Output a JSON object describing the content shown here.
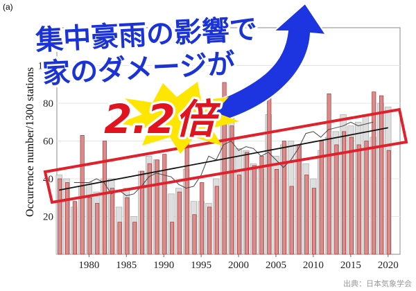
{
  "panel_label": "(a)",
  "overlay": {
    "headline_1": "集中豪雨の影響で",
    "headline_2": "家のダメージが",
    "ratio": "2.2倍"
  },
  "source": "出典：日本気象学会",
  "chart_data": {
    "type": "bar",
    "ylabel": "Occurrence number/1300 stations",
    "x": [
      1976,
      1977,
      1978,
      1979,
      1980,
      1981,
      1982,
      1983,
      1984,
      1985,
      1986,
      1987,
      1988,
      1989,
      1990,
      1991,
      1992,
      1993,
      1994,
      1995,
      1996,
      1997,
      1998,
      1999,
      2000,
      2001,
      2002,
      2003,
      2004,
      2005,
      2006,
      2007,
      2008,
      2009,
      2010,
      2011,
      2012,
      2013,
      2014,
      2015,
      2016,
      2017,
      2018,
      2019,
      2020
    ],
    "series": [
      {
        "color": "#dedede",
        "values": [
          42,
          40,
          25,
          36,
          38,
          33,
          40,
          40,
          25,
          35,
          20,
          44,
          52,
          50,
          44,
          32,
          35,
          45,
          28,
          28,
          27,
          40,
          70,
          78,
          56,
          55,
          48,
          45,
          74,
          52,
          58,
          60,
          58,
          48,
          40,
          55,
          62,
          65,
          74,
          68,
          70,
          74,
          62,
          80,
          78
        ]
      },
      {
        "color": "#d98c8c",
        "values": [
          40,
          38,
          28,
          63,
          30,
          27,
          60,
          35,
          17,
          30,
          17,
          44,
          48,
          50,
          53,
          17,
          33,
          62,
          21,
          38,
          25,
          36,
          91,
          68,
          42,
          54,
          47,
          52,
          87,
          45,
          60,
          36,
          58,
          42,
          35,
          60,
          85,
          58,
          65,
          62,
          58,
          60,
          86,
          84,
          55
        ]
      }
    ],
    "running_mean": {
      "color": "#444444",
      "values": [
        null,
        null,
        38,
        38,
        38,
        40,
        38,
        32,
        34,
        31,
        32,
        36,
        41,
        43,
        42,
        41,
        37,
        35,
        36,
        42,
        52,
        50,
        58,
        60,
        55,
        57,
        56,
        52,
        54,
        50,
        46,
        50,
        56,
        64,
        65,
        62,
        66,
        67,
        68,
        70,
        68,
        69,
        70,
        null,
        null
      ]
    },
    "trend": {
      "color": "#111111",
      "x": [
        1976,
        2020
      ],
      "values": [
        34,
        67
      ]
    },
    "xlim": [
      1975.7,
      2021.6
    ],
    "xticks": [
      1980,
      1985,
      1990,
      1995,
      2000,
      2005,
      2010,
      2015,
      2020
    ],
    "ylim": [
      0,
      120
    ],
    "yticks": [
      20,
      40,
      60,
      80,
      100
    ],
    "grid": true
  }
}
